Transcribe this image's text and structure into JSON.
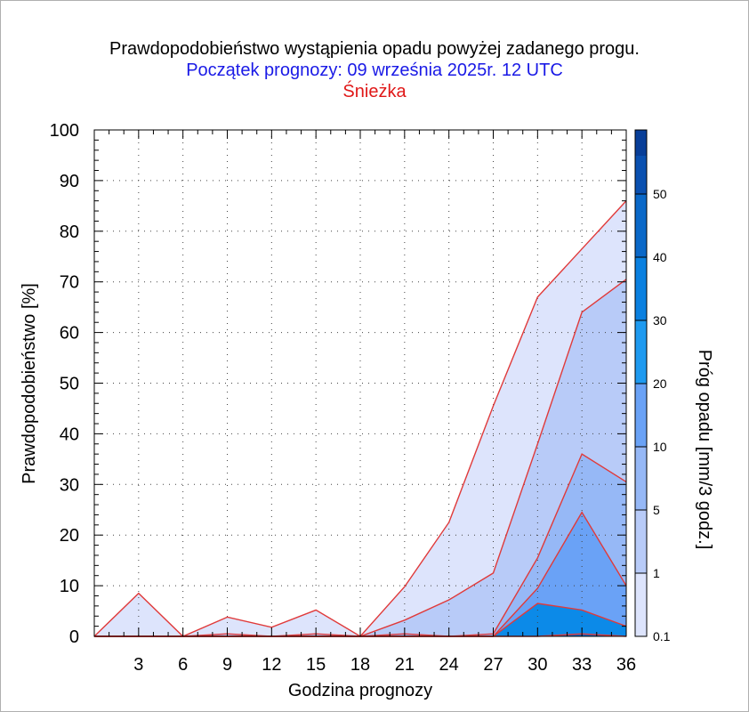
{
  "title": "Prawdopodobieństwo wystąpienia opadu powyżej zadanego progu.",
  "subtitle": "Początek prognozy: 09 września 2025r. 12 UTC",
  "location": "Śnieżka",
  "chart_data": {
    "type": "area",
    "xlabel": "Godzina prognozy",
    "ylabel": "Prawdopodobieństwo [%]",
    "colorbar_label": "Próg opadu [mm/3 godz.]",
    "xlim": [
      0,
      36
    ],
    "ylim": [
      0,
      100
    ],
    "x": [
      0,
      3,
      6,
      9,
      12,
      15,
      18,
      21,
      24,
      27,
      30,
      33,
      36
    ],
    "x_tick_labels": [
      "3",
      "6",
      "9",
      "12",
      "15",
      "18",
      "21",
      "24",
      "27",
      "30",
      "33",
      "36"
    ],
    "y_tick_labels": [
      "0",
      "10",
      "20",
      "30",
      "40",
      "50",
      "60",
      "70",
      "80",
      "90",
      "100"
    ],
    "colorbar_ticks": [
      "0.1",
      "1",
      "5",
      "10",
      "20",
      "30",
      "40",
      "50"
    ],
    "grid": true,
    "series": [
      {
        "name": "0.1",
        "color": "#dde4fc",
        "values": [
          0,
          8.5,
          0,
          3.8,
          1.8,
          5.2,
          0,
          9.8,
          22.5,
          45.5,
          67,
          76.5,
          86
        ]
      },
      {
        "name": "1",
        "color": "#b8cbf8",
        "values": [
          0,
          0,
          0,
          0.5,
          0,
          0.5,
          0,
          3.2,
          7.2,
          12.5,
          38,
          64,
          70.5
        ]
      },
      {
        "name": "5",
        "color": "#96b8f6",
        "values": [
          0,
          0,
          0,
          0,
          0,
          0,
          0,
          0.5,
          0,
          0.5,
          15.5,
          36,
          30.5
        ]
      },
      {
        "name": "10",
        "color": "#6aa2f6",
        "values": [
          0,
          0,
          0,
          0,
          0,
          0,
          0,
          0,
          0,
          0,
          9.5,
          24.5,
          10
        ]
      },
      {
        "name": "20",
        "color": "#0c8ae8",
        "values": [
          0,
          0,
          0,
          0,
          0,
          0,
          0,
          0,
          0,
          0,
          6.5,
          5.2,
          2
        ]
      },
      {
        "name": "30",
        "color": "#0a68c8",
        "values": [
          0,
          0,
          0,
          0,
          0,
          0,
          0,
          0,
          0,
          0,
          0,
          0.5,
          0
        ]
      }
    ],
    "colorbar_colors": [
      "#dde4fc",
      "#b8cbf8",
      "#96b8f6",
      "#6aa2f6",
      "#1e9af0",
      "#0a80e0",
      "#0a68c8",
      "#0a50b0",
      "#083e98"
    ]
  }
}
